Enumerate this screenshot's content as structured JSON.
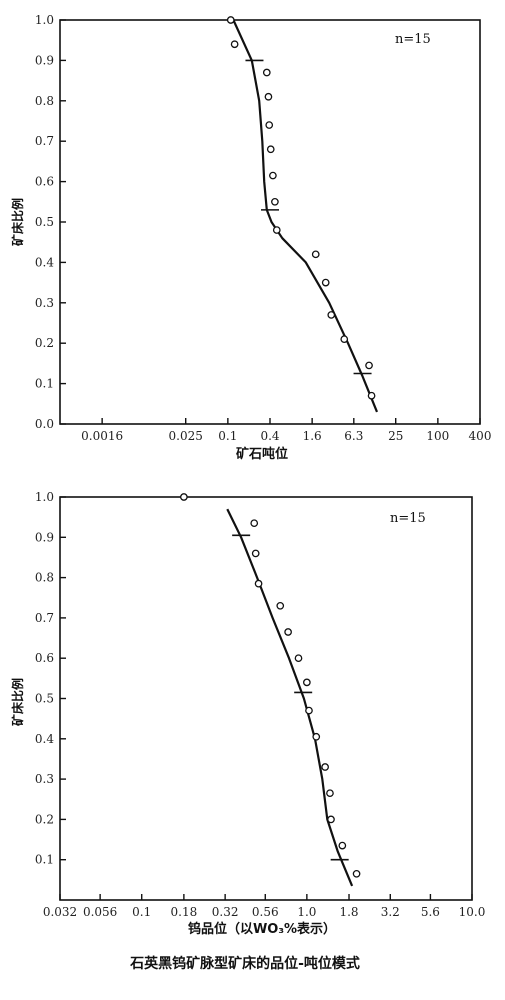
{
  "caption": "石英黑钨矿脉型矿床的品位-吨位模式",
  "chart_data": [
    {
      "type": "scatter",
      "xscale": "log",
      "xlabel": "矿石吨位",
      "ylabel": "矿床比例",
      "annotation": "n=15",
      "xlim": [
        0.0004,
        400
      ],
      "ylim": [
        0.0,
        1.0
      ],
      "xticks": [
        {
          "value": 0.0016,
          "label": "0.0016"
        },
        {
          "value": 0.025,
          "label": "0.025"
        },
        {
          "value": 0.1,
          "label": "0.1"
        },
        {
          "value": 0.4,
          "label": "0.4"
        },
        {
          "value": 1.6,
          "label": "1.6"
        },
        {
          "value": 6.3,
          "label": "6.3"
        },
        {
          "value": 25,
          "label": "25"
        },
        {
          "value": 100,
          "label": "100"
        },
        {
          "value": 400,
          "label": "400"
        }
      ],
      "yticks": [
        "0.0",
        "0.1",
        "0.2",
        "0.3",
        "0.4",
        "0.5",
        "0.6",
        "0.7",
        "0.8",
        "0.9",
        "1.0"
      ],
      "points": [
        {
          "x": 0.11,
          "y": 1.0
        },
        {
          "x": 0.125,
          "y": 0.94
        },
        {
          "x": 0.36,
          "y": 0.87
        },
        {
          "x": 0.38,
          "y": 0.81
        },
        {
          "x": 0.39,
          "y": 0.74
        },
        {
          "x": 0.41,
          "y": 0.68
        },
        {
          "x": 0.44,
          "y": 0.615
        },
        {
          "x": 0.47,
          "y": 0.55
        },
        {
          "x": 0.5,
          "y": 0.48
        },
        {
          "x": 1.8,
          "y": 0.42
        },
        {
          "x": 2.5,
          "y": 0.35
        },
        {
          "x": 3.0,
          "y": 0.27
        },
        {
          "x": 4.6,
          "y": 0.21
        },
        {
          "x": 10.4,
          "y": 0.145
        },
        {
          "x": 11.3,
          "y": 0.07
        }
      ],
      "curve": [
        {
          "x": 0.12,
          "y": 1.0
        },
        {
          "x": 0.22,
          "y": 0.9
        },
        {
          "x": 0.28,
          "y": 0.8
        },
        {
          "x": 0.31,
          "y": 0.7
        },
        {
          "x": 0.33,
          "y": 0.6
        },
        {
          "x": 0.36,
          "y": 0.53
        },
        {
          "x": 0.42,
          "y": 0.5
        },
        {
          "x": 0.6,
          "y": 0.46
        },
        {
          "x": 1.3,
          "y": 0.4
        },
        {
          "x": 2.8,
          "y": 0.3
        },
        {
          "x": 5.2,
          "y": 0.2
        },
        {
          "x": 8.3,
          "y": 0.12
        },
        {
          "x": 13.5,
          "y": 0.03
        }
      ],
      "percentile_marks": [
        {
          "x": 0.24,
          "y": 0.9
        },
        {
          "x": 0.4,
          "y": 0.53
        },
        {
          "x": 8.4,
          "y": 0.125
        }
      ]
    },
    {
      "type": "scatter",
      "xscale": "log",
      "xlabel": "钨品位（以WO₃%表示）",
      "ylabel": "矿床比例",
      "annotation": "n=15",
      "xlim": [
        0.032,
        10.0
      ],
      "ylim": [
        0.0,
        1.0
      ],
      "xticks": [
        {
          "value": 0.032,
          "label": "0.032"
        },
        {
          "value": 0.056,
          "label": "0.056"
        },
        {
          "value": 0.1,
          "label": "0.1"
        },
        {
          "value": 0.18,
          "label": "0.18"
        },
        {
          "value": 0.32,
          "label": "0.32"
        },
        {
          "value": 0.56,
          "label": "0.56"
        },
        {
          "value": 1.0,
          "label": "1.0"
        },
        {
          "value": 1.8,
          "label": "1.8"
        },
        {
          "value": 3.2,
          "label": "3.2"
        },
        {
          "value": 5.6,
          "label": "5.6"
        },
        {
          "value": 10.0,
          "label": "10.0"
        }
      ],
      "yticks": [
        "0.1",
        "0.2",
        "0.3",
        "0.4",
        "0.5",
        "0.6",
        "0.7",
        "0.8",
        "0.9",
        "1.0"
      ],
      "points": [
        {
          "x": 0.18,
          "y": 1.0
        },
        {
          "x": 0.48,
          "y": 0.935
        },
        {
          "x": 0.49,
          "y": 0.86
        },
        {
          "x": 0.51,
          "y": 0.785
        },
        {
          "x": 0.69,
          "y": 0.73
        },
        {
          "x": 0.77,
          "y": 0.665
        },
        {
          "x": 0.89,
          "y": 0.6
        },
        {
          "x": 1.0,
          "y": 0.54
        },
        {
          "x": 1.03,
          "y": 0.47
        },
        {
          "x": 1.14,
          "y": 0.405
        },
        {
          "x": 1.29,
          "y": 0.33
        },
        {
          "x": 1.38,
          "y": 0.265
        },
        {
          "x": 1.4,
          "y": 0.2
        },
        {
          "x": 1.64,
          "y": 0.135
        },
        {
          "x": 2.0,
          "y": 0.065
        }
      ],
      "curve": [
        {
          "x": 0.33,
          "y": 0.97
        },
        {
          "x": 0.4,
          "y": 0.9
        },
        {
          "x": 0.5,
          "y": 0.8
        },
        {
          "x": 0.62,
          "y": 0.7
        },
        {
          "x": 0.78,
          "y": 0.6
        },
        {
          "x": 0.96,
          "y": 0.5
        },
        {
          "x": 1.12,
          "y": 0.4
        },
        {
          "x": 1.24,
          "y": 0.3
        },
        {
          "x": 1.33,
          "y": 0.2
        },
        {
          "x": 1.54,
          "y": 0.12
        },
        {
          "x": 1.88,
          "y": 0.035
        }
      ],
      "percentile_marks": [
        {
          "x": 0.4,
          "y": 0.905
        },
        {
          "x": 0.95,
          "y": 0.515
        },
        {
          "x": 1.58,
          "y": 0.1
        }
      ]
    }
  ]
}
